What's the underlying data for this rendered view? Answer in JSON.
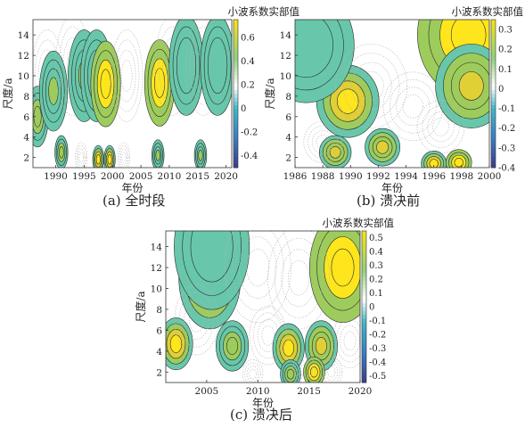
{
  "chart_data": [
    {
      "type": "heatmap",
      "panel": "a",
      "caption": "(a) 全时段",
      "xlabel": "年份",
      "ylabel": "尺度/a",
      "colorbar_label": "小波系数实部值",
      "xlim": [
        1986,
        2021
      ],
      "ylim": [
        1,
        15.5
      ],
      "xticks": [
        1990,
        1995,
        2000,
        2005,
        2010,
        2015,
        2020
      ],
      "yticks": [
        2,
        4,
        6,
        8,
        10,
        12,
        14
      ],
      "cbar_ticks": [
        0.6,
        0.4,
        0.2,
        0,
        -0.2,
        -0.4
      ],
      "clim": [
        -0.5,
        0.75
      ],
      "features": [
        {
          "t": 1986.8,
          "s": 6,
          "v": 0.42
        },
        {
          "t": 1988.5,
          "s": 10,
          "v": -0.4
        },
        {
          "t": 1989.6,
          "s": 8.5,
          "v": 0.3
        },
        {
          "t": 1993,
          "s": 11,
          "v": -0.35
        },
        {
          "t": 1995,
          "s": 10,
          "v": 0.3
        },
        {
          "t": 1997.2,
          "s": 10,
          "v": 0.22
        },
        {
          "t": 1998.8,
          "s": 9.2,
          "v": 0.72
        },
        {
          "t": 2002.5,
          "s": 10,
          "v": -0.35
        },
        {
          "t": 2008.3,
          "s": 9.3,
          "v": 0.72
        },
        {
          "t": 2010.5,
          "s": 11,
          "v": -0.35
        },
        {
          "t": 2013,
          "s": 11,
          "v": 0.2
        },
        {
          "t": 2016,
          "s": 11,
          "v": -0.3
        },
        {
          "t": 2018.5,
          "s": 11,
          "v": 0.2
        },
        {
          "t": 1991,
          "s": 2.5,
          "v": 0.45
        },
        {
          "t": 1997.5,
          "s": 1.8,
          "v": 0.65
        },
        {
          "t": 1999.5,
          "s": 1.8,
          "v": 0.65
        },
        {
          "t": 2008,
          "s": 2.2,
          "v": 0.35
        },
        {
          "t": 2015.5,
          "s": 2.2,
          "v": 0.35
        },
        {
          "t": 1994.5,
          "s": 2,
          "v": -0.45
        },
        {
          "t": 2002,
          "s": 2,
          "v": -0.4
        }
      ]
    },
    {
      "type": "heatmap",
      "panel": "b",
      "caption": "(b) 溃决前",
      "xlabel": "年份",
      "ylabel": "尺度/a",
      "colorbar_label": "小波系数实部值",
      "xlim": [
        1986,
        2000
      ],
      "ylim": [
        1,
        15.5
      ],
      "xticks": [
        1986,
        1988,
        1990,
        1992,
        1994,
        1996,
        1998,
        2000
      ],
      "yticks": [
        2,
        4,
        6,
        8,
        10,
        12,
        14
      ],
      "cbar_ticks": [
        0.3,
        0.2,
        0.1,
        0,
        -0.1,
        -0.2,
        -0.3,
        -0.4
      ],
      "clim": [
        -0.4,
        0.35
      ],
      "features": [
        {
          "t": 1989.8,
          "s": 7.5,
          "v": 0.28
        },
        {
          "t": 1988.9,
          "s": 2.5,
          "v": 0.25
        },
        {
          "t": 1992.3,
          "s": 3,
          "v": 0.22
        },
        {
          "t": 1998.5,
          "s": 14,
          "v": 0.33
        },
        {
          "t": 1998.7,
          "s": 9,
          "v": 0.25
        },
        {
          "t": 1986.8,
          "s": 13,
          "v": 0.1
        },
        {
          "t": 1997.8,
          "s": 1.5,
          "v": 0.33
        },
        {
          "t": 1996,
          "s": 1.4,
          "v": 0.3
        },
        {
          "t": 1991.5,
          "s": 9,
          "v": -0.3
        },
        {
          "t": 1994.5,
          "s": 7,
          "v": -0.32
        },
        {
          "t": 1988,
          "s": 3.5,
          "v": -0.3
        },
        {
          "t": 1996.5,
          "s": 5,
          "v": -0.15
        }
      ]
    },
    {
      "type": "heatmap",
      "panel": "c",
      "caption": "(c) 溃决后",
      "xlabel": "年份",
      "ylabel": "尺度/a",
      "colorbar_label": "小波系数实部值",
      "xlim": [
        2001,
        2020
      ],
      "ylim": [
        1,
        15.5
      ],
      "xticks": [
        2005,
        2010,
        2015,
        2020
      ],
      "yticks": [
        2,
        4,
        6,
        8,
        10,
        12,
        14
      ],
      "cbar_ticks": [
        0.5,
        0.4,
        0.3,
        0.2,
        0.1,
        0,
        -0.1,
        -0.2,
        -0.3,
        -0.4,
        -0.5
      ],
      "clim": [
        -0.55,
        0.55
      ],
      "features": [
        {
          "t": 2005.3,
          "s": 11,
          "v": 0.45
        },
        {
          "t": 2005.5,
          "s": 14,
          "v": 0.2
        },
        {
          "t": 2002,
          "s": 4.7,
          "v": 0.45
        },
        {
          "t": 2018.3,
          "s": 12,
          "v": 0.5
        },
        {
          "t": 2007.5,
          "s": 4.5,
          "v": 0.25
        },
        {
          "t": 2013,
          "s": 4.3,
          "v": 0.45
        },
        {
          "t": 2016.2,
          "s": 4.5,
          "v": 0.35
        },
        {
          "t": 2013.2,
          "s": 1.8,
          "v": 0.3
        },
        {
          "t": 2015.5,
          "s": 2,
          "v": 0.5
        },
        {
          "t": 2010,
          "s": 12,
          "v": -0.25
        },
        {
          "t": 2014,
          "s": 11,
          "v": -0.2
        },
        {
          "t": 2004,
          "s": 7,
          "v": -0.4
        },
        {
          "t": 2011,
          "s": 5.5,
          "v": -0.3
        },
        {
          "t": 2019,
          "s": 5,
          "v": -0.25
        },
        {
          "t": 2009.5,
          "s": 1.8,
          "v": -0.35
        },
        {
          "t": 2014.5,
          "s": 2.2,
          "v": -0.35
        },
        {
          "t": 2017.2,
          "s": 2,
          "v": -0.3
        }
      ]
    }
  ]
}
